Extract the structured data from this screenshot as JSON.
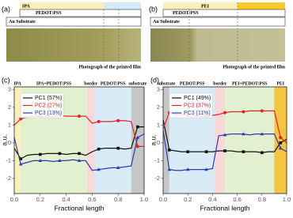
{
  "panels": {
    "a": {
      "label": "(a)",
      "layers": [
        "IPA",
        "PEDOT:PSS",
        "Au Substrate"
      ],
      "caption": "Photograph of the printed film"
    },
    "b": {
      "label": "(b)",
      "layers": [
        "PEI",
        "PEDOT:PSS",
        "Au Substrate"
      ],
      "caption": "Photograph of the printed film"
    }
  },
  "chart_data": [
    {
      "type": "line",
      "label": "(c)",
      "xlabel": "Fractional length",
      "ylabel": "a.u.",
      "x": [
        0,
        0.05,
        0.1,
        0.15,
        0.2,
        0.25,
        0.3,
        0.35,
        0.4,
        0.45,
        0.5,
        0.55,
        0.6,
        0.65,
        0.7,
        0.75,
        0.8,
        0.85,
        0.9,
        0.95,
        1
      ],
      "series": [
        {
          "name": "PC1 (57%)",
          "color": "#111111",
          "values": [
            -0.3,
            -0.9,
            -0.7,
            -0.65,
            -0.65,
            -0.6,
            -0.6,
            -0.6,
            -0.65,
            -0.6,
            -0.6,
            -0.7,
            -0.5,
            -0.35,
            -0.3,
            -0.3,
            -0.3,
            -0.35,
            -0.3,
            0.9,
            0.9
          ]
        },
        {
          "name": "PC2 (27%)",
          "color": "#e0262b",
          "values": [
            1.0,
            1.35,
            1.45,
            1.5,
            1.5,
            1.5,
            1.5,
            1.55,
            1.5,
            1.5,
            1.5,
            1.5,
            1.1,
            1.2,
            1.2,
            1.2,
            1.25,
            1.25,
            1.2,
            -0.2,
            -0.2
          ]
        },
        {
          "name": "PC3 (13%)",
          "color": "#2a3cb0",
          "values": [
            0.3,
            -1.2,
            -1.1,
            -1.0,
            -1.0,
            -1.0,
            -1.05,
            -1.0,
            -1.0,
            -0.95,
            -1.0,
            -1.0,
            -1.55,
            -1.5,
            -1.45,
            -1.4,
            -1.4,
            -1.35,
            -1.3,
            0.3,
            0.5
          ]
        }
      ],
      "xlim": [
        0,
        1
      ],
      "ylim": [
        -2.85,
        3.15
      ],
      "xticks": [
        {
          "value": 0,
          "label": "0.0"
        },
        0.2,
        0.4,
        0.6,
        0.8,
        {
          "value": 1,
          "label": "1.0"
        }
      ],
      "yticks": [
        -2,
        -1,
        0,
        1,
        2,
        3
      ],
      "regions": [
        {
          "label": "IPA",
          "range": [
            0,
            0.05
          ],
          "color": "#fbefbd"
        },
        {
          "label": "IPA+PEDOT:PSS",
          "range": [
            0.05,
            0.56
          ],
          "color": "#e2f0cf"
        },
        {
          "label": "border",
          "range": [
            0.56,
            0.62
          ],
          "color": "#f8d9d9"
        },
        {
          "label": "PEDOT:PSS",
          "range": [
            0.62,
            0.9
          ],
          "color": "#d9ebf7"
        },
        {
          "label": "substrate",
          "range": [
            0.9,
            1
          ],
          "color": "#c6c6c6"
        }
      ],
      "legend": "upper left"
    },
    {
      "type": "line",
      "label": "(d)",
      "xlabel": "Fractional length",
      "ylabel": "a.u.",
      "x": [
        0,
        0.05,
        0.1,
        0.15,
        0.2,
        0.25,
        0.3,
        0.35,
        0.4,
        0.45,
        0.5,
        0.55,
        0.6,
        0.65,
        0.7,
        0.75,
        0.8,
        0.85,
        0.9,
        0.95,
        1
      ],
      "series": [
        {
          "name": "PC1 (49%)",
          "color": "#111111",
          "values": [
            1.3,
            -0.4,
            -0.45,
            -0.5,
            -0.5,
            -0.5,
            -0.5,
            -0.5,
            -0.5,
            -0.45,
            -0.45,
            -0.45,
            -0.5,
            -0.5,
            -0.5,
            -0.5,
            -0.55,
            -0.5,
            -0.5,
            0.0,
            0.2
          ]
        },
        {
          "name": "PC2 (37%)",
          "color": "#e0262b",
          "values": [
            0.8,
            1.7,
            1.6,
            1.6,
            1.55,
            1.55,
            1.5,
            1.5,
            1.55,
            1.6,
            1.7,
            1.75,
            1.75,
            1.75,
            1.8,
            1.8,
            1.8,
            1.8,
            1.8,
            0.3,
            0.0
          ]
        },
        {
          "name": "PC3 (11%)",
          "color": "#2a3cb0",
          "values": [
            0.7,
            -1.5,
            -1.55,
            -1.55,
            -1.5,
            -1.5,
            -1.5,
            -1.5,
            -1.45,
            0.4,
            0.45,
            0.5,
            0.5,
            0.5,
            0.45,
            0.5,
            0.5,
            0.5,
            0.5,
            -0.3,
            -0.5
          ]
        }
      ],
      "xlim": [
        0,
        1
      ],
      "ylim": [
        -2.85,
        3.15
      ],
      "xticks": [
        {
          "value": 0,
          "label": "0.0"
        },
        0.2,
        0.4,
        0.6,
        0.8,
        {
          "value": 1,
          "label": "1.0"
        }
      ],
      "yticks": [
        -2,
        -1,
        0,
        1,
        2,
        3
      ],
      "regions": [
        {
          "label": "substrate",
          "range": [
            0,
            0.05
          ],
          "color": "#c6c6c6"
        },
        {
          "label": "PEDOT:PSS",
          "range": [
            0.05,
            0.42
          ],
          "color": "#d9ebf7"
        },
        {
          "label": "border",
          "range": [
            0.42,
            0.5
          ],
          "color": "#f8d9d9"
        },
        {
          "label": "PEI+PEDOT:PSS",
          "range": [
            0.5,
            0.9
          ],
          "color": "#e2f0cf"
        },
        {
          "label": "PEI",
          "range": [
            0.9,
            1
          ],
          "color": "#f5c444"
        }
      ],
      "legend": "upper left"
    }
  ]
}
